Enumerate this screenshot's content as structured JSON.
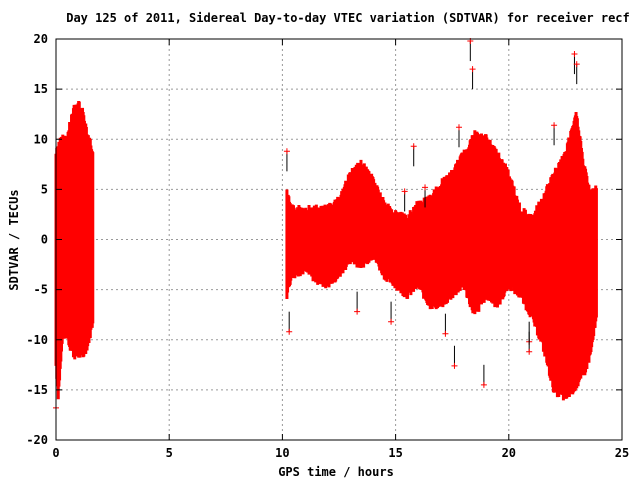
{
  "chart_data": {
    "type": "scatter",
    "title": "Day 125 of 2011, Sidereal Day-to-day VTEC variation (SDTVAR) for receiver recf",
    "xlabel": "GPS time / hours",
    "ylabel": "SDTVAR / TECUs",
    "xlim": [
      0,
      25
    ],
    "ylim": [
      -20,
      20
    ],
    "xticks": [
      "0",
      "5",
      "10",
      "15",
      "20",
      "25"
    ],
    "yticks": [
      "20",
      "15",
      "10",
      "5",
      "0",
      "-5",
      "-10",
      "-15",
      "-20"
    ],
    "grid": true,
    "series_color": "#ff0000",
    "errorbar_color": "#000000",
    "envelope": [
      {
        "segment": [
          [
            0.0,
            -13,
            9
          ],
          [
            0.1,
            -16,
            10
          ],
          [
            0.3,
            -10,
            10.5
          ],
          [
            0.5,
            -10,
            10.5
          ],
          [
            0.6,
            -11,
            12
          ],
          [
            0.8,
            -12,
            13.5
          ],
          [
            1.0,
            -12,
            14
          ],
          [
            1.2,
            -12,
            13
          ],
          [
            1.4,
            -11,
            11
          ],
          [
            1.6,
            -9,
            9.5
          ],
          [
            1.65,
            -8,
            8
          ]
        ]
      },
      {
        "segment": [
          [
            10.2,
            -6,
            5
          ],
          [
            10.4,
            -4,
            3.5
          ],
          [
            11,
            -3.5,
            3.5
          ],
          [
            11.5,
            -4.5,
            3.5
          ],
          [
            12,
            -5,
            3.5
          ],
          [
            12.5,
            -4,
            4.5
          ],
          [
            13,
            -2.5,
            7
          ],
          [
            13.5,
            -3,
            8
          ],
          [
            14,
            -2,
            6.5
          ],
          [
            14.5,
            -4,
            4
          ],
          [
            15,
            -5,
            3
          ],
          [
            15.5,
            -6,
            2.5
          ],
          [
            16,
            -5,
            4
          ],
          [
            16.5,
            -7,
            4.5
          ],
          [
            17,
            -7,
            6
          ],
          [
            17.5,
            -6,
            7
          ],
          [
            18,
            -5,
            9
          ],
          [
            18.5,
            -8,
            11
          ],
          [
            19,
            -6,
            10.5
          ],
          [
            19.5,
            -7,
            9
          ],
          [
            20,
            -5,
            7
          ],
          [
            20.5,
            -6,
            3.5
          ],
          [
            21,
            -8,
            2.5
          ],
          [
            21.5,
            -11,
            4.5
          ],
          [
            22,
            -15.5,
            7
          ],
          [
            22.5,
            -16.3,
            9
          ],
          [
            23,
            -15,
            13
          ],
          [
            23.3,
            -14,
            8
          ],
          [
            23.6,
            -12,
            5
          ],
          [
            23.9,
            -8,
            5.5
          ]
        ]
      }
    ],
    "outliers": [
      [
        18.3,
        19.8
      ],
      [
        18.4,
        17
      ],
      [
        17.8,
        11.2
      ],
      [
        22.0,
        11.4
      ],
      [
        15.8,
        9.3
      ],
      [
        18.9,
        -14.5
      ],
      [
        17.6,
        -12.6
      ],
      [
        10.2,
        8.8
      ],
      [
        10.3,
        -9.2
      ],
      [
        13.3,
        -7.2
      ],
      [
        14.8,
        -8.2
      ],
      [
        20.9,
        -10.2
      ],
      [
        20.9,
        -11.2
      ],
      [
        22.9,
        18.5
      ],
      [
        23.0,
        17.5
      ],
      [
        0.0,
        -16.8
      ],
      [
        16.3,
        5.2
      ],
      [
        15.4,
        4.8
      ],
      [
        17.2,
        -9.4
      ]
    ]
  }
}
